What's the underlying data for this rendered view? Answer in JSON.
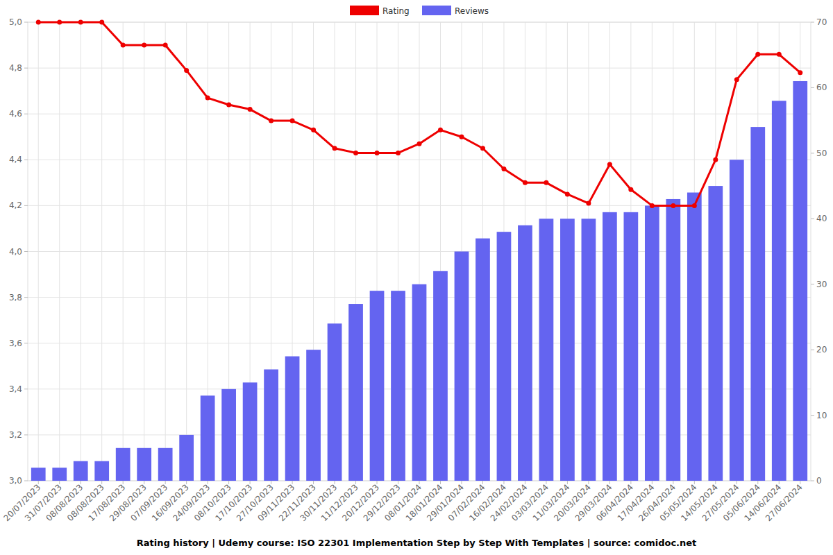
{
  "chart_data": {
    "type": "bar",
    "title": "Rating history | Udemy course: ISO 22301 Implementation Step by Step With Templates | source: comidoc.net",
    "categories": [
      "20/07/2023",
      "31/07/2023",
      "08/08/2023",
      "08/08/2023",
      "17/08/2023",
      "29/08/2023",
      "07/09/2023",
      "16/09/2023",
      "24/09/2023",
      "08/10/2023",
      "17/10/2023",
      "27/10/2023",
      "09/11/2023",
      "22/11/2023",
      "30/11/2023",
      "11/12/2023",
      "20/12/2023",
      "29/12/2023",
      "08/01/2024",
      "18/01/2024",
      "29/01/2024",
      "07/02/2024",
      "16/02/2024",
      "24/02/2024",
      "03/03/2024",
      "11/03/2024",
      "20/03/2024",
      "29/03/2024",
      "06/04/2024",
      "17/04/2024",
      "26/04/2024",
      "05/05/2024",
      "14/05/2024",
      "27/05/2024",
      "05/06/2024",
      "14/06/2024",
      "27/06/2024"
    ],
    "series": [
      {
        "name": "Rating",
        "type": "line",
        "color": "#ee0000",
        "marker": "circle",
        "values": [
          5.0,
          5.0,
          5.0,
          5.0,
          4.9,
          4.9,
          4.9,
          4.79,
          4.67,
          4.64,
          4.62,
          4.57,
          4.57,
          4.53,
          4.45,
          4.43,
          4.43,
          4.43,
          4.47,
          4.53,
          4.5,
          4.45,
          4.36,
          4.3,
          4.3,
          4.25,
          4.21,
          4.38,
          4.27,
          4.2,
          4.2,
          4.2,
          4.4,
          4.75,
          4.86,
          4.86,
          4.78
        ]
      },
      {
        "name": "Reviews",
        "type": "bar",
        "color": "#6464f0",
        "axis": "y2",
        "values": [
          2,
          2,
          3,
          3,
          5,
          5,
          5,
          7,
          13,
          14,
          15,
          17,
          19,
          20,
          24,
          27,
          29,
          29,
          30,
          32,
          35,
          37,
          38,
          39,
          40,
          40,
          40,
          41,
          41,
          42,
          43,
          44,
          45,
          49,
          54,
          58,
          61
        ]
      }
    ],
    "ylim": [
      3,
      5
    ],
    "yticks": [
      {
        "value": 3,
        "label": "3,0"
      },
      {
        "value": 3.2,
        "label": "3,2"
      },
      {
        "value": 3.4,
        "label": "3,4"
      },
      {
        "value": 3.6,
        "label": "3,6"
      },
      {
        "value": 3.8,
        "label": "3,8"
      },
      {
        "value": 4,
        "label": "4,0"
      },
      {
        "value": 4.2,
        "label": "4,2"
      },
      {
        "value": 4.4,
        "label": "4,4"
      },
      {
        "value": 4.6,
        "label": "4,6"
      },
      {
        "value": 4.8,
        "label": "4,8"
      },
      {
        "value": 5,
        "label": "5,0"
      }
    ],
    "y2lim": [
      0,
      70
    ],
    "y2ticks": [
      0,
      10,
      20,
      30,
      40,
      50,
      60,
      70
    ],
    "grid": true,
    "legend": "top"
  }
}
